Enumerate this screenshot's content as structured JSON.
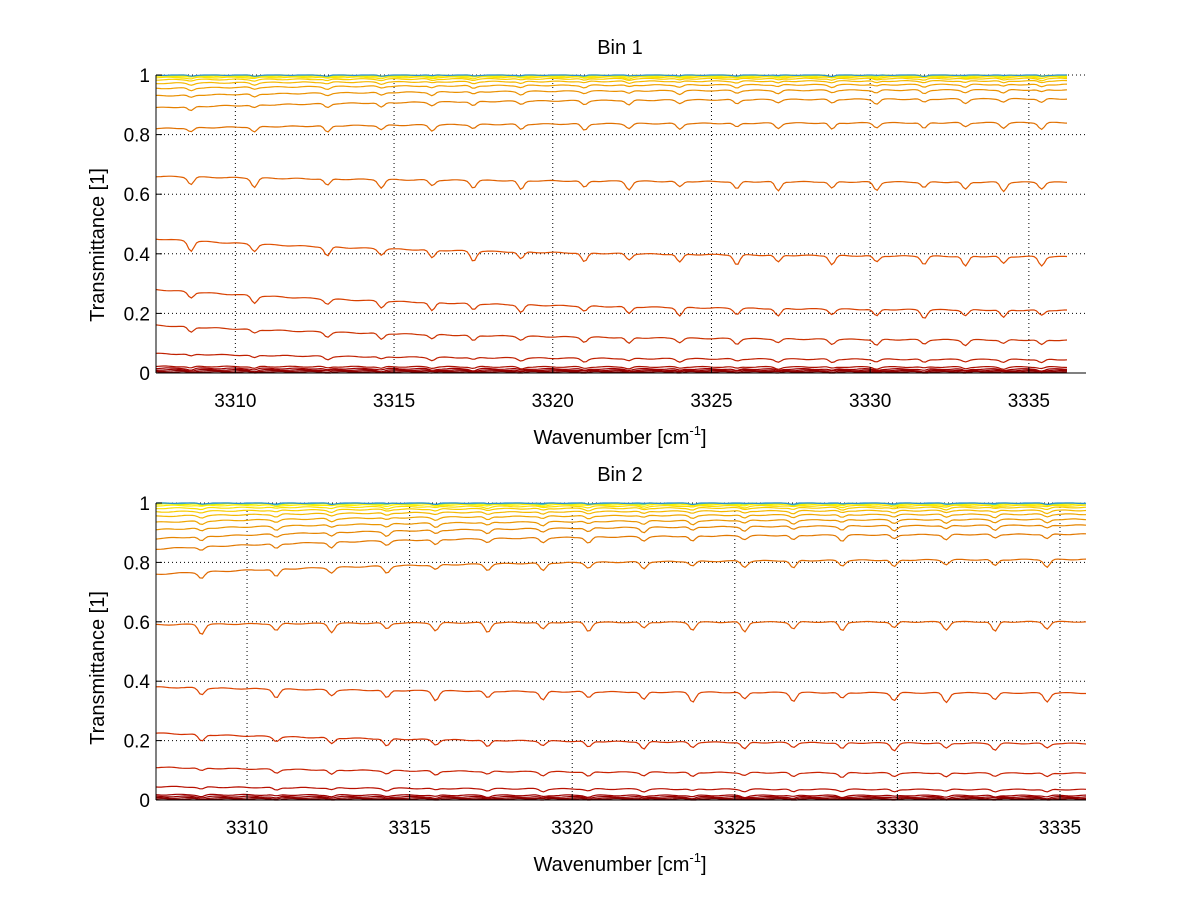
{
  "chart_data": [
    {
      "type": "line",
      "title": "Bin 1",
      "xlabel": "Wavenumber [cm",
      "xlabel_sup": "-1",
      "xlabel_close": "]",
      "ylabel": "Transmittance [1]",
      "xlim": [
        3307.5,
        3336.8
      ],
      "ylim": [
        0,
        1
      ],
      "x_end": 3336.2,
      "xticks": [
        3310,
        3315,
        3320,
        3325,
        3330,
        3335
      ],
      "xtick_labels": [
        "3310",
        "3315",
        "3320",
        "3325",
        "3330",
        "3335"
      ],
      "yticks": [
        0,
        0.2,
        0.4,
        0.6,
        0.8,
        1
      ],
      "ytick_labels": [
        "0",
        "0.2",
        "0.4",
        "0.6",
        "0.8",
        "1"
      ],
      "grid": true,
      "legend": "none",
      "absorption_lines": [
        3308.6,
        3310.6,
        3312.9,
        3314.6,
        3316.2,
        3317.5,
        3319.0,
        3321.0,
        3322.4,
        3324.0,
        3325.8,
        3327.1,
        3328.8,
        3330.2,
        3331.7,
        3333.0,
        3334.2,
        3335.4
      ],
      "series": [
        {
          "start": 0.003,
          "end": 0.003,
          "color": "#7f0000"
        },
        {
          "start": 0.007,
          "end": 0.006,
          "color": "#8b0000"
        },
        {
          "start": 0.011,
          "end": 0.009,
          "color": "#960000"
        },
        {
          "start": 0.016,
          "end": 0.013,
          "color": "#a10000"
        },
        {
          "start": 0.022,
          "end": 0.02,
          "color": "#ad1000"
        },
        {
          "start": 0.065,
          "end": 0.045,
          "color": "#c02000"
        },
        {
          "start": 0.16,
          "end": 0.11,
          "color": "#cc3300"
        },
        {
          "start": 0.28,
          "end": 0.21,
          "color": "#d84000"
        },
        {
          "start": 0.45,
          "end": 0.39,
          "color": "#e05000"
        },
        {
          "start": 0.66,
          "end": 0.64,
          "color": "#e06000"
        },
        {
          "start": 0.82,
          "end": 0.84,
          "color": "#e07000"
        },
        {
          "start": 0.89,
          "end": 0.92,
          "color": "#e58000"
        },
        {
          "start": 0.93,
          "end": 0.95,
          "color": "#ea9000"
        },
        {
          "start": 0.955,
          "end": 0.968,
          "color": "#f0a000"
        },
        {
          "start": 0.972,
          "end": 0.98,
          "color": "#f5b800"
        },
        {
          "start": 0.984,
          "end": 0.988,
          "color": "#f8cc00"
        },
        {
          "start": 0.991,
          "end": 0.993,
          "color": "#fadf00"
        },
        {
          "start": 0.995,
          "end": 0.996,
          "color": "#fcef00"
        },
        {
          "start": 0.998,
          "end": 0.998,
          "color": "#f0f500"
        },
        {
          "start": 0.999,
          "end": 0.999,
          "color": "#c0e840"
        },
        {
          "start": 1.0,
          "end": 1.0,
          "color": "#2a8fd0"
        }
      ]
    },
    {
      "type": "line",
      "title": "Bin 2",
      "xlabel": "Wavenumber [cm",
      "xlabel_sup": "-1",
      "xlabel_close": "]",
      "ylabel": "Transmittance [1]",
      "xlim": [
        3307.2,
        3335.8
      ],
      "ylim": [
        0,
        1
      ],
      "x_end": 3335.8,
      "xticks": [
        3310,
        3315,
        3320,
        3325,
        3330,
        3335
      ],
      "xtick_labels": [
        "3310",
        "3315",
        "3320",
        "3325",
        "3330",
        "3335"
      ],
      "yticks": [
        0,
        0.2,
        0.4,
        0.6,
        0.8,
        1
      ],
      "ytick_labels": [
        "0",
        "0.2",
        "0.4",
        "0.6",
        "0.8",
        "1"
      ],
      "grid": true,
      "legend": "none",
      "absorption_lines": [
        3308.6,
        3310.9,
        3312.6,
        3314.3,
        3315.8,
        3317.4,
        3319.1,
        3320.5,
        3322.2,
        3323.7,
        3325.3,
        3326.8,
        3328.3,
        3329.9,
        3331.5,
        3333.0,
        3334.6
      ],
      "series": [
        {
          "start": 0.003,
          "end": 0.003,
          "color": "#7f0000"
        },
        {
          "start": 0.007,
          "end": 0.006,
          "color": "#8b0000"
        },
        {
          "start": 0.012,
          "end": 0.01,
          "color": "#960000"
        },
        {
          "start": 0.018,
          "end": 0.015,
          "color": "#a10000"
        },
        {
          "start": 0.045,
          "end": 0.035,
          "color": "#b81000"
        },
        {
          "start": 0.11,
          "end": 0.09,
          "color": "#c82200"
        },
        {
          "start": 0.225,
          "end": 0.19,
          "color": "#d43000"
        },
        {
          "start": 0.38,
          "end": 0.36,
          "color": "#dd4500"
        },
        {
          "start": 0.59,
          "end": 0.6,
          "color": "#e05a00"
        },
        {
          "start": 0.76,
          "end": 0.81,
          "color": "#e06a00"
        },
        {
          "start": 0.845,
          "end": 0.895,
          "color": "#e27800"
        },
        {
          "start": 0.88,
          "end": 0.925,
          "color": "#e68500"
        },
        {
          "start": 0.91,
          "end": 0.945,
          "color": "#ea9500"
        },
        {
          "start": 0.935,
          "end": 0.962,
          "color": "#efa500"
        },
        {
          "start": 0.955,
          "end": 0.975,
          "color": "#f4b800"
        },
        {
          "start": 0.97,
          "end": 0.985,
          "color": "#f8cc00"
        },
        {
          "start": 0.982,
          "end": 0.991,
          "color": "#fbdf00"
        },
        {
          "start": 0.991,
          "end": 0.995,
          "color": "#fdef00"
        },
        {
          "start": 0.996,
          "end": 0.998,
          "color": "#eef500"
        },
        {
          "start": 0.999,
          "end": 0.999,
          "color": "#60d0a0"
        },
        {
          "start": 1.0,
          "end": 1.0,
          "color": "#2a8fd0"
        }
      ]
    }
  ]
}
